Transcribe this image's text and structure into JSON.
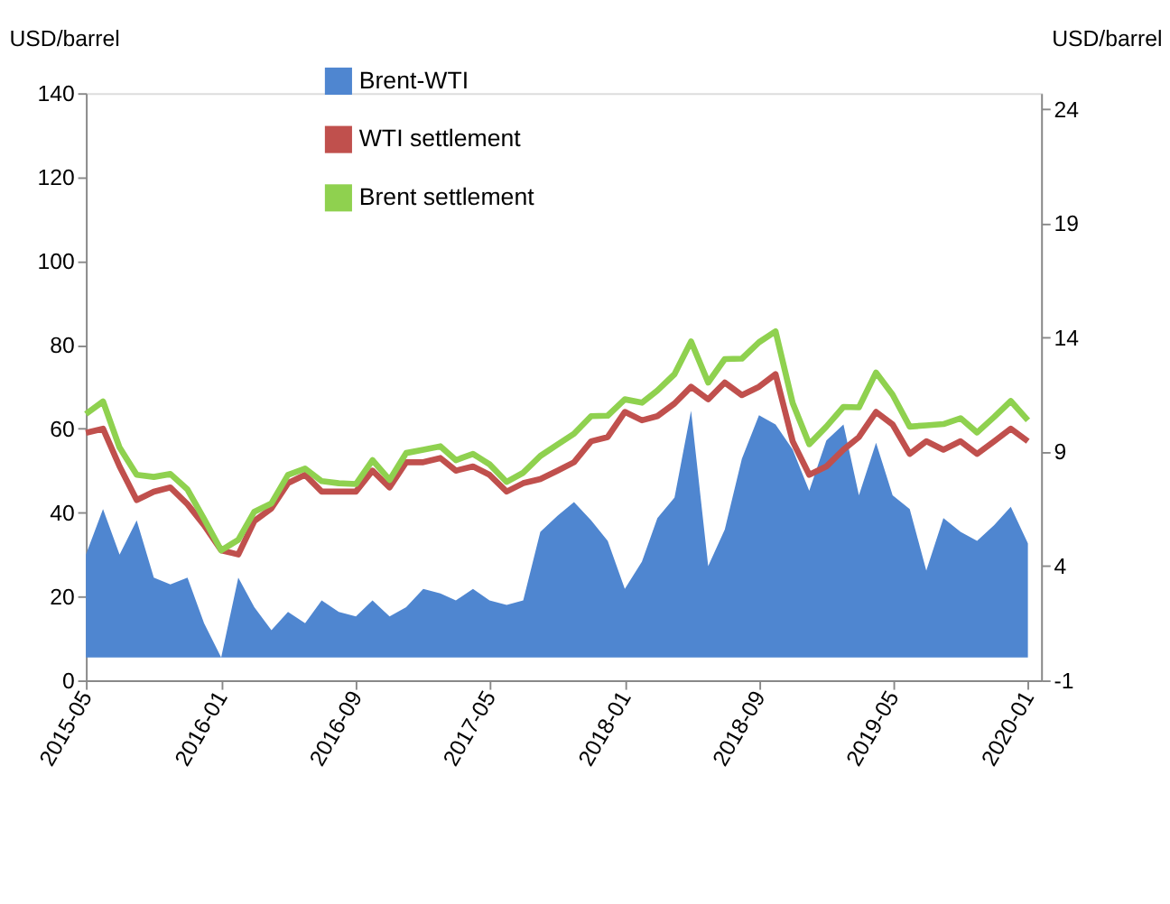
{
  "chart_data": {
    "type": "line",
    "ylabel": "USD/barrel",
    "y2label": "USD/barrel",
    "x": [
      "2015-05",
      "2015-06",
      "2015-07",
      "2015-08",
      "2015-09",
      "2015-10",
      "2015-11",
      "2015-12",
      "2016-01",
      "2016-02",
      "2016-03",
      "2016-04",
      "2016-05",
      "2016-06",
      "2016-07",
      "2016-08",
      "2016-09",
      "2016-10",
      "2016-11",
      "2016-12",
      "2017-01",
      "2017-02",
      "2017-03",
      "2017-04",
      "2017-05",
      "2017-06",
      "2017-07",
      "2017-08",
      "2017-09",
      "2017-10",
      "2017-11",
      "2017-12",
      "2018-01",
      "2018-02",
      "2018-03",
      "2018-04",
      "2018-05",
      "2018-06",
      "2018-07",
      "2018-08",
      "2018-09",
      "2018-10",
      "2018-11",
      "2018-12",
      "2019-01",
      "2019-02",
      "2019-03",
      "2019-04",
      "2019-05",
      "2019-06",
      "2019-07",
      "2019-08",
      "2019-09",
      "2019-10",
      "2019-11",
      "2019-12",
      "2020-01"
    ],
    "series": [
      {
        "name": "Brent-WTI",
        "type": "area",
        "axis": "y2",
        "color": "#4f86d0",
        "values": [
          4.5,
          6.5,
          4.5,
          6.0,
          3.5,
          3.2,
          3.5,
          1.5,
          0.0,
          3.5,
          2.2,
          1.2,
          2.0,
          1.5,
          2.5,
          2.0,
          1.8,
          2.5,
          1.8,
          2.2,
          3.0,
          2.8,
          2.5,
          3.0,
          2.5,
          2.3,
          2.5,
          5.5,
          6.2,
          6.8,
          6.0,
          5.1,
          3.0,
          4.2,
          6.1,
          7.0,
          10.8,
          4.0,
          5.6,
          8.7,
          10.6,
          10.2,
          9.1,
          7.3,
          9.5,
          10.2,
          7.1,
          9.4,
          7.1,
          6.5,
          3.8,
          6.1,
          5.5,
          5.1,
          5.8,
          6.6,
          5.0
        ]
      },
      {
        "name": "WTI settlement",
        "axis": "y",
        "color": "#c0504d",
        "values": [
          59,
          60,
          51,
          43,
          45,
          46,
          42,
          37,
          31,
          30,
          38,
          41,
          47,
          49,
          45,
          45,
          45,
          50,
          46,
          52,
          52,
          53,
          50,
          51,
          49,
          45,
          47,
          48,
          50,
          52,
          57,
          58,
          64,
          62,
          63,
          66,
          70,
          67,
          71,
          68,
          70,
          73,
          57,
          49,
          51,
          55,
          58,
          64,
          61,
          54,
          57,
          55,
          57,
          54,
          57,
          60,
          57
        ]
      },
      {
        "name": "Brent settlement",
        "axis": "y",
        "color": "#8fd14f",
        "values": [
          63.5,
          66.5,
          55.5,
          49,
          48.5,
          49.2,
          45.5,
          38.5,
          31,
          33.5,
          40.2,
          42.2,
          49,
          50.5,
          47.5,
          47,
          46.8,
          52.5,
          47.8,
          54.2,
          55,
          55.8,
          52.5,
          54,
          51.5,
          47.3,
          49.5,
          53.5,
          56.2,
          58.8,
          63,
          63.1,
          67,
          66.2,
          69.1,
          73,
          80.8,
          71,
          76.6,
          76.7,
          80.6,
          83.2,
          66.1,
          56.3,
          60.5,
          65.2,
          65.1,
          73.4,
          68.1,
          60.5,
          60.8,
          61.1,
          62.5,
          59.1,
          62.8,
          66.6,
          62
        ]
      }
    ],
    "xlim": [
      "2015-05",
      "2020-01-25"
    ],
    "xticks": [
      "2015-05",
      "2016-01",
      "2016-09",
      "2017-05",
      "2018-01",
      "2018-09",
      "2019-05",
      "2020-01"
    ],
    "ylim": [
      0,
      140
    ],
    "yticks": [
      0,
      20,
      40,
      60,
      80,
      100,
      120,
      140
    ],
    "y2lim": [
      -1,
      24.7
    ],
    "y2ticks": [
      -1,
      4,
      9,
      14,
      19,
      24
    ],
    "grid": false,
    "legend": "top"
  }
}
